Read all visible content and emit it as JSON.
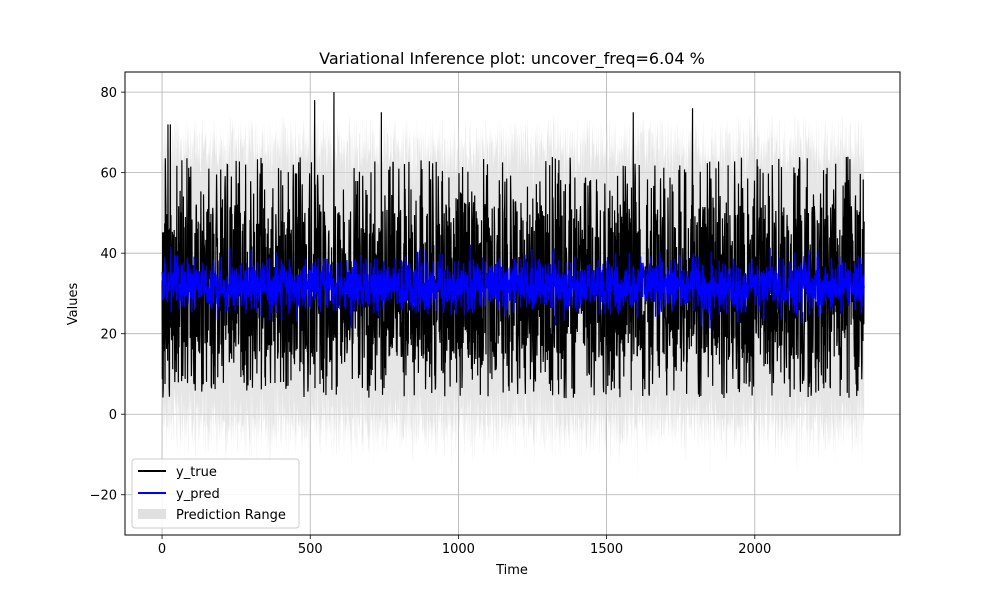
{
  "chart_data": {
    "type": "line",
    "title": "Variational Inference plot: uncover_freq=6.04 %",
    "xlabel": "Time",
    "ylabel": "Values",
    "xlim": [
      -125,
      2490
    ],
    "ylim": [
      -30,
      85
    ],
    "x_ticks": [
      0,
      500,
      1000,
      1500,
      2000
    ],
    "y_ticks": [
      -20,
      0,
      20,
      40,
      60,
      80
    ],
    "x_tick_labels": [
      "0",
      "500",
      "1000",
      "1500",
      "2000"
    ],
    "y_tick_labels": [
      "−20",
      "0",
      "20",
      "40",
      "60",
      "80"
    ],
    "grid": true,
    "legend_position": "lower-left",
    "n_points": 2370,
    "series": [
      {
        "name": "y_true",
        "kind": "line",
        "color": "#000000",
        "summary": {
          "min": 0,
          "max": 80,
          "typical_range": [
            5,
            60
          ],
          "x_range": [
            0,
            2369
          ]
        },
        "notable_peaks": [
          {
            "x": 20,
            "y": 72
          },
          {
            "x": 28,
            "y": 72
          },
          {
            "x": 515,
            "y": 78
          },
          {
            "x": 580,
            "y": 80
          },
          {
            "x": 740,
            "y": 75
          },
          {
            "x": 1590,
            "y": 75
          },
          {
            "x": 1790,
            "y": 76
          }
        ]
      },
      {
        "name": "y_pred",
        "kind": "line",
        "color": "#0000ff",
        "summary": {
          "mean": 32,
          "typical_range": [
            22,
            42
          ],
          "x_range": [
            0,
            2369
          ]
        }
      },
      {
        "name": "Prediction Range",
        "kind": "band",
        "color": "#d9d9d9",
        "summary": {
          "upper_typical": [
            55,
            72
          ],
          "lower_typical": [
            -10,
            5
          ],
          "extremes": [
            -18,
            74
          ]
        }
      }
    ]
  }
}
